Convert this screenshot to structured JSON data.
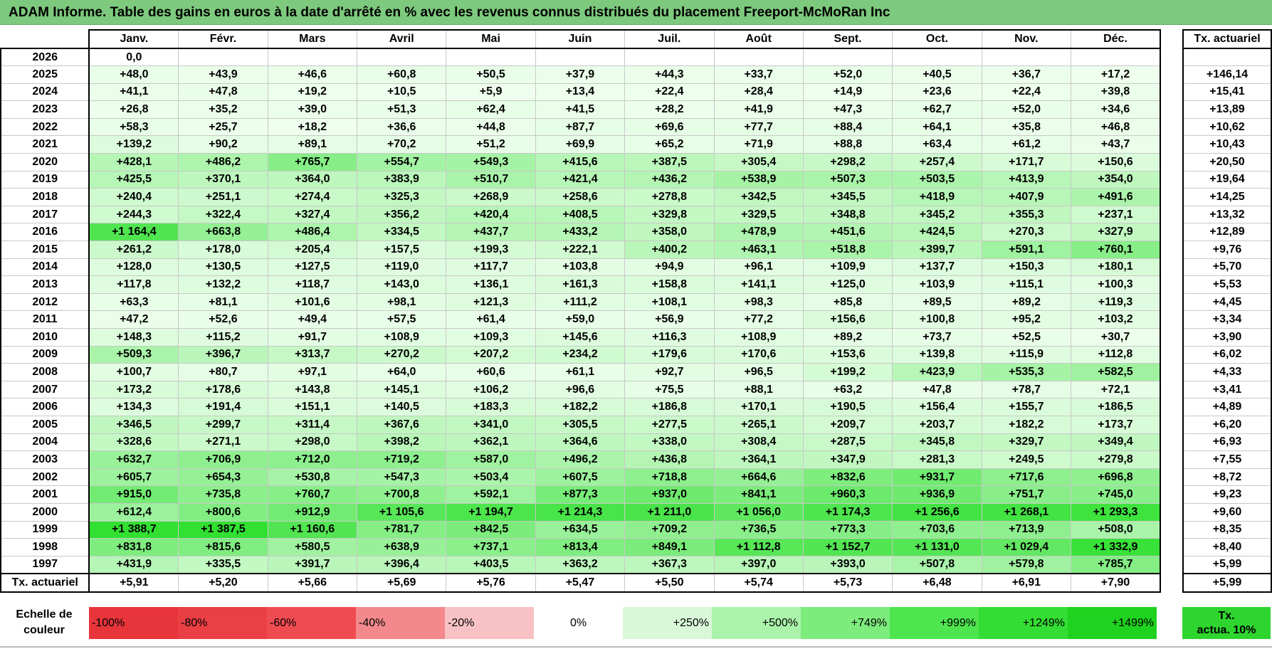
{
  "title": "ADAM Informe. Table des gains en euros à la date d'arrêté en % avec les revenus connus distribués du placement Freeport-McMoRan Inc",
  "months": [
    "Janv.",
    "Févr.",
    "Mars",
    "Avril",
    "Mai",
    "Juin",
    "Juil.",
    "Août",
    "Sept.",
    "Oct.",
    "Nov.",
    "Déc."
  ],
  "rate_header": "Tx. actuariel",
  "rows": [
    {
      "year": "2026",
      "values": [
        "0,0",
        "",
        "",
        "",
        "",
        "",
        "",
        "",
        "",
        "",
        "",
        ""
      ],
      "rate": ""
    },
    {
      "year": "2025",
      "values": [
        "+48,0",
        "+43,9",
        "+46,6",
        "+60,8",
        "+50,5",
        "+37,9",
        "+44,3",
        "+33,7",
        "+52,0",
        "+40,5",
        "+36,7",
        "+17,2"
      ],
      "rate": "+146,14"
    },
    {
      "year": "2024",
      "values": [
        "+41,1",
        "+47,8",
        "+19,2",
        "+10,5",
        "+5,9",
        "+13,4",
        "+22,4",
        "+28,4",
        "+14,9",
        "+23,6",
        "+22,4",
        "+39,8"
      ],
      "rate": "+15,41"
    },
    {
      "year": "2023",
      "values": [
        "+26,8",
        "+35,2",
        "+39,0",
        "+51,3",
        "+62,4",
        "+41,5",
        "+28,2",
        "+41,9",
        "+47,3",
        "+62,7",
        "+52,0",
        "+34,6"
      ],
      "rate": "+13,89"
    },
    {
      "year": "2022",
      "values": [
        "+58,3",
        "+25,7",
        "+18,2",
        "+36,6",
        "+44,8",
        "+87,7",
        "+69,6",
        "+77,7",
        "+88,4",
        "+64,1",
        "+35,8",
        "+46,8"
      ],
      "rate": "+10,62"
    },
    {
      "year": "2021",
      "values": [
        "+139,2",
        "+90,2",
        "+89,1",
        "+70,2",
        "+51,2",
        "+69,9",
        "+65,2",
        "+71,9",
        "+88,8",
        "+63,4",
        "+61,2",
        "+43,7"
      ],
      "rate": "+10,43"
    },
    {
      "year": "2020",
      "values": [
        "+428,1",
        "+486,2",
        "+765,7",
        "+554,7",
        "+549,3",
        "+415,6",
        "+387,5",
        "+305,4",
        "+298,2",
        "+257,4",
        "+171,7",
        "+150,6"
      ],
      "rate": "+20,50"
    },
    {
      "year": "2019",
      "values": [
        "+425,5",
        "+370,1",
        "+364,0",
        "+383,9",
        "+510,7",
        "+421,4",
        "+436,2",
        "+538,9",
        "+507,3",
        "+503,5",
        "+413,9",
        "+354,0"
      ],
      "rate": "+19,64"
    },
    {
      "year": "2018",
      "values": [
        "+240,4",
        "+251,1",
        "+274,4",
        "+325,3",
        "+268,9",
        "+258,6",
        "+278,8",
        "+342,5",
        "+345,5",
        "+418,9",
        "+407,9",
        "+491,6"
      ],
      "rate": "+14,25"
    },
    {
      "year": "2017",
      "values": [
        "+244,3",
        "+322,4",
        "+327,4",
        "+356,2",
        "+420,4",
        "+408,5",
        "+329,8",
        "+329,5",
        "+348,8",
        "+345,2",
        "+355,3",
        "+237,1"
      ],
      "rate": "+13,32"
    },
    {
      "year": "2016",
      "values": [
        "+1 164,4",
        "+663,8",
        "+486,4",
        "+334,5",
        "+437,7",
        "+433,2",
        "+358,0",
        "+478,9",
        "+451,6",
        "+424,5",
        "+270,3",
        "+327,9"
      ],
      "rate": "+12,89"
    },
    {
      "year": "2015",
      "values": [
        "+261,2",
        "+178,0",
        "+205,4",
        "+157,5",
        "+199,3",
        "+222,1",
        "+400,2",
        "+463,1",
        "+518,8",
        "+399,7",
        "+591,1",
        "+760,1"
      ],
      "rate": "+9,76"
    },
    {
      "year": "2014",
      "values": [
        "+128,0",
        "+130,5",
        "+127,5",
        "+119,0",
        "+117,7",
        "+103,8",
        "+94,9",
        "+96,1",
        "+109,9",
        "+137,7",
        "+150,3",
        "+180,1"
      ],
      "rate": "+5,70"
    },
    {
      "year": "2013",
      "values": [
        "+117,8",
        "+132,2",
        "+118,7",
        "+143,0",
        "+136,1",
        "+161,3",
        "+158,8",
        "+141,1",
        "+125,0",
        "+103,9",
        "+115,1",
        "+100,3"
      ],
      "rate": "+5,53"
    },
    {
      "year": "2012",
      "values": [
        "+63,3",
        "+81,1",
        "+101,6",
        "+98,1",
        "+121,3",
        "+111,2",
        "+108,1",
        "+98,3",
        "+85,8",
        "+89,5",
        "+89,2",
        "+119,3"
      ],
      "rate": "+4,45"
    },
    {
      "year": "2011",
      "values": [
        "+47,2",
        "+52,6",
        "+49,4",
        "+57,5",
        "+61,4",
        "+59,0",
        "+56,9",
        "+77,2",
        "+156,6",
        "+100,8",
        "+95,2",
        "+103,2"
      ],
      "rate": "+3,34"
    },
    {
      "year": "2010",
      "values": [
        "+148,3",
        "+115,2",
        "+91,7",
        "+108,9",
        "+109,3",
        "+145,6",
        "+116,3",
        "+108,9",
        "+89,2",
        "+73,7",
        "+52,5",
        "+30,7"
      ],
      "rate": "+3,90"
    },
    {
      "year": "2009",
      "values": [
        "+509,3",
        "+396,7",
        "+313,7",
        "+270,2",
        "+207,2",
        "+234,2",
        "+179,6",
        "+170,6",
        "+153,6",
        "+139,8",
        "+115,9",
        "+112,8"
      ],
      "rate": "+6,02"
    },
    {
      "year": "2008",
      "values": [
        "+100,7",
        "+80,7",
        "+97,1",
        "+64,0",
        "+60,6",
        "+61,1",
        "+92,7",
        "+96,5",
        "+199,2",
        "+423,9",
        "+535,3",
        "+582,5"
      ],
      "rate": "+4,33"
    },
    {
      "year": "2007",
      "values": [
        "+173,2",
        "+178,6",
        "+143,8",
        "+145,1",
        "+106,2",
        "+96,6",
        "+75,5",
        "+88,1",
        "+63,2",
        "+47,8",
        "+78,7",
        "+72,1"
      ],
      "rate": "+3,41"
    },
    {
      "year": "2006",
      "values": [
        "+134,3",
        "+191,4",
        "+151,1",
        "+140,5",
        "+183,3",
        "+182,2",
        "+186,8",
        "+170,1",
        "+190,5",
        "+156,4",
        "+155,7",
        "+186,5"
      ],
      "rate": "+4,89"
    },
    {
      "year": "2005",
      "values": [
        "+346,5",
        "+299,7",
        "+311,4",
        "+367,6",
        "+341,0",
        "+305,5",
        "+277,5",
        "+265,1",
        "+209,7",
        "+203,7",
        "+182,2",
        "+173,7"
      ],
      "rate": "+6,20"
    },
    {
      "year": "2004",
      "values": [
        "+328,6",
        "+271,1",
        "+298,0",
        "+398,2",
        "+362,1",
        "+364,6",
        "+338,0",
        "+308,4",
        "+287,5",
        "+345,8",
        "+329,7",
        "+349,4"
      ],
      "rate": "+6,93"
    },
    {
      "year": "2003",
      "values": [
        "+632,7",
        "+706,9",
        "+712,0",
        "+719,2",
        "+587,0",
        "+496,2",
        "+436,8",
        "+364,1",
        "+347,9",
        "+281,3",
        "+249,5",
        "+279,8"
      ],
      "rate": "+7,55"
    },
    {
      "year": "2002",
      "values": [
        "+605,7",
        "+654,3",
        "+530,8",
        "+547,3",
        "+503,4",
        "+607,5",
        "+718,8",
        "+664,6",
        "+832,6",
        "+931,7",
        "+717,6",
        "+696,8"
      ],
      "rate": "+8,72"
    },
    {
      "year": "2001",
      "values": [
        "+915,0",
        "+735,8",
        "+760,7",
        "+700,8",
        "+592,1",
        "+877,3",
        "+937,0",
        "+841,1",
        "+960,3",
        "+936,9",
        "+751,7",
        "+745,0"
      ],
      "rate": "+9,23"
    },
    {
      "year": "2000",
      "values": [
        "+612,4",
        "+800,6",
        "+912,9",
        "+1 105,6",
        "+1 194,7",
        "+1 214,3",
        "+1 211,0",
        "+1 056,0",
        "+1 174,3",
        "+1 256,6",
        "+1 268,1",
        "+1 293,3"
      ],
      "rate": "+9,60"
    },
    {
      "year": "1999",
      "values": [
        "+1 388,7",
        "+1 387,5",
        "+1 160,6",
        "+781,7",
        "+842,5",
        "+634,5",
        "+709,2",
        "+736,5",
        "+773,3",
        "+703,6",
        "+713,9",
        "+508,0"
      ],
      "rate": "+8,35"
    },
    {
      "year": "1998",
      "values": [
        "+831,8",
        "+815,6",
        "+580,5",
        "+638,9",
        "+737,1",
        "+813,4",
        "+849,1",
        "+1 112,8",
        "+1 152,7",
        "+1 131,0",
        "+1 029,4",
        "+1 332,9"
      ],
      "rate": "+8,40"
    },
    {
      "year": "1997",
      "values": [
        "+431,9",
        "+335,5",
        "+391,7",
        "+396,4",
        "+403,5",
        "+363,2",
        "+367,3",
        "+397,0",
        "+393,0",
        "+507,8",
        "+579,8",
        "+785,7"
      ],
      "rate": "+5,99"
    }
  ],
  "footer": {
    "label": "Tx. actuariel",
    "values": [
      "+5,91",
      "+5,20",
      "+5,66",
      "+5,69",
      "+5,76",
      "+5,47",
      "+5,50",
      "+5,74",
      "+5,73",
      "+6,48",
      "+6,91",
      "+7,90"
    ],
    "rate": "+5,99"
  },
  "scale": {
    "label_line1": "Echelle de",
    "label_line2": "couleur",
    "cells": [
      {
        "label": "-100%",
        "color": "#e8353c",
        "kind": "neg"
      },
      {
        "label": "-80%",
        "color": "#ea3f45",
        "kind": "neg"
      },
      {
        "label": "-60%",
        "color": "#ef4c52",
        "kind": "neg"
      },
      {
        "label": "-40%",
        "color": "#f3898c",
        "kind": "neg"
      },
      {
        "label": "-20%",
        "color": "#f8c2c4",
        "kind": "neg"
      },
      {
        "label": "0%",
        "color": "#ffffff",
        "kind": "zero"
      },
      {
        "label": "+250%",
        "color": "#d8f8d8",
        "kind": "pos"
      },
      {
        "label": "+500%",
        "color": "#abf2ab",
        "kind": "pos"
      },
      {
        "label": "+749%",
        "color": "#7dec7d",
        "kind": "pos"
      },
      {
        "label": "+999%",
        "color": "#4fe54f",
        "kind": "pos"
      },
      {
        "label": "+1249%",
        "color": "#34dd34",
        "kind": "pos"
      },
      {
        "label": "+1499%",
        "color": "#1fd21f",
        "kind": "pos"
      }
    ],
    "rate_line1": "Tx.",
    "rate_line2": "actua. 10%",
    "rate_color": "#2fd52f"
  }
}
